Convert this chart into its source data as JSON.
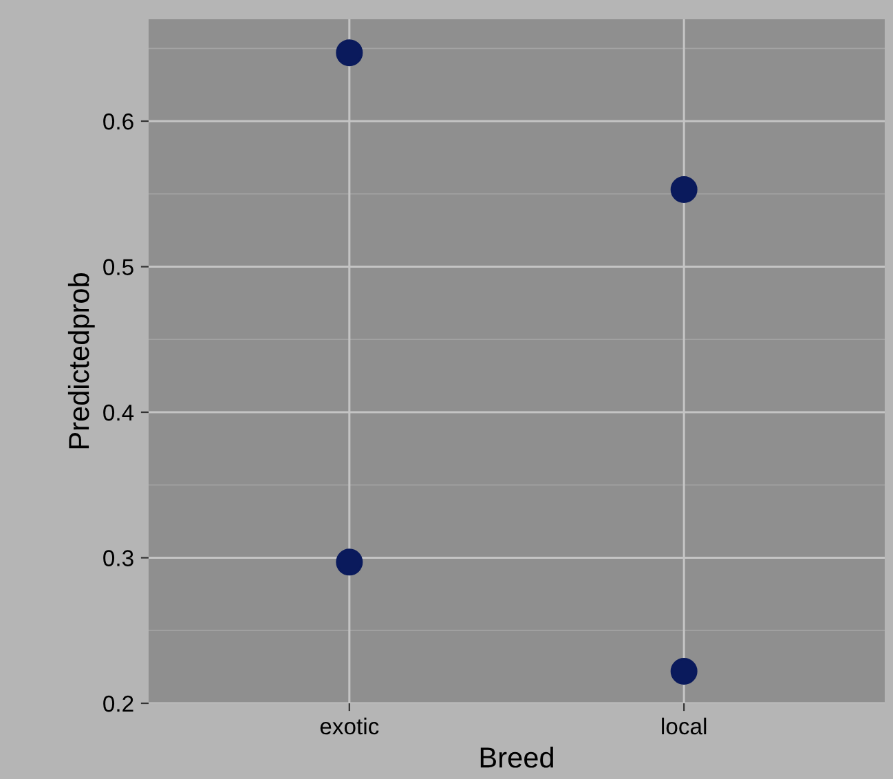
{
  "chart_data": {
    "type": "scatter",
    "xlabel": "Breed",
    "ylabel": "Predictedprob",
    "categories": [
      "exotic",
      "local"
    ],
    "series": [
      {
        "color": "#0a1a5c",
        "values": [
          0.647,
          0.553
        ]
      },
      {
        "color": "#0a1a5c",
        "values": [
          0.297,
          0.222
        ]
      }
    ],
    "ylim": [
      0.2,
      0.67
    ],
    "yticks": [
      0.2,
      0.3,
      0.4,
      0.5,
      0.6
    ],
    "grid": true,
    "marker": "circle",
    "legend": false
  }
}
